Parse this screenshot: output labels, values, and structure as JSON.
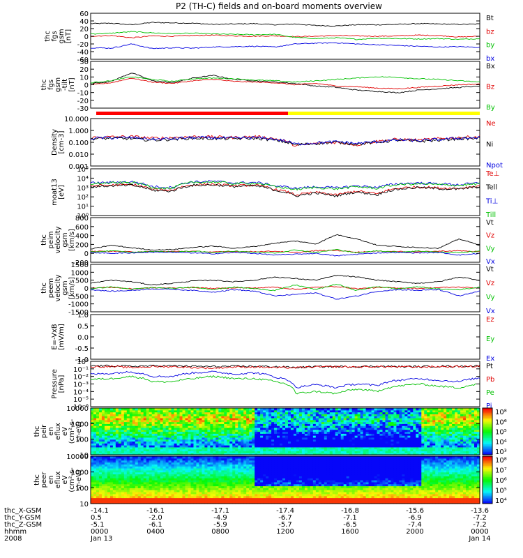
{
  "title": "P2 (TH-C) fields and on-board moments overview",
  "chart_data": [
    {
      "type": "line",
      "panel": 1,
      "ylabel": [
        "thc",
        "fgs",
        "gsm",
        "[nT]"
      ],
      "yticks": [
        "60",
        "40",
        "20",
        "0",
        "-20",
        "-40",
        "-60"
      ],
      "ylim": [
        -60,
        60
      ],
      "grid": false,
      "legend_position": "right",
      "series": [
        {
          "name": "Bt",
          "color": "#000000",
          "values": [
            33,
            34,
            30,
            36,
            35,
            34,
            31,
            32,
            33,
            30,
            32,
            28,
            27,
            30,
            30,
            31,
            33,
            32,
            31,
            32
          ]
        },
        {
          "name": "bz",
          "color": "#e00000",
          "values": [
            0,
            2,
            -4,
            1,
            0,
            2,
            3,
            1,
            0,
            1,
            -1,
            0,
            2,
            1,
            0,
            1,
            3,
            2,
            -2,
            0
          ]
        },
        {
          "name": "by",
          "color": "#00c000",
          "values": [
            6,
            8,
            12,
            9,
            7,
            8,
            6,
            5,
            4,
            5,
            -3,
            -6,
            -4,
            -8,
            -5,
            -6,
            -7,
            -6,
            -8,
            -6
          ]
        },
        {
          "name": "bx",
          "color": "#0000e0",
          "values": [
            -30,
            -31,
            -20,
            -32,
            -30,
            -31,
            -28,
            -27,
            -26,
            -28,
            -20,
            -18,
            -17,
            -20,
            -22,
            -24,
            -26,
            -28,
            -27,
            -29
          ]
        }
      ]
    },
    {
      "type": "line",
      "panel": 2,
      "ylabel": [
        "thc",
        "fgs",
        "gsm",
        "-tilt",
        "[nT]"
      ],
      "yticks": [
        "30",
        "20",
        "10",
        "0",
        "-10",
        "-20",
        "-30"
      ],
      "ylim": [
        -35,
        35
      ],
      "grid": false,
      "legend_position": "right",
      "series": [
        {
          "name": "Bx",
          "color": "#000000",
          "values": [
            2,
            5,
            18,
            6,
            3,
            10,
            14,
            8,
            6,
            4,
            2,
            -2,
            -4,
            -8,
            -10,
            -12,
            -8,
            -6,
            -4,
            -2
          ]
        },
        {
          "name": "Bz",
          "color": "#e00000",
          "values": [
            0,
            3,
            10,
            4,
            2,
            6,
            8,
            5,
            4,
            3,
            0,
            2,
            -2,
            -3,
            -5,
            -6,
            -4,
            -2,
            0,
            1
          ]
        },
        {
          "name": "By",
          "color": "#00c000",
          "values": [
            3,
            6,
            12,
            8,
            5,
            9,
            10,
            9,
            7,
            6,
            4,
            6,
            8,
            10,
            12,
            11,
            9,
            8,
            6,
            4
          ]
        }
      ]
    },
    {
      "type": "line",
      "panel": 3,
      "scale": "log",
      "ylabel": [
        "Density",
        "[cm-3]"
      ],
      "yticks": [
        "10.000",
        "1.000",
        "0.100",
        "0.010",
        "0.001"
      ],
      "ylim": [
        0.001,
        10
      ],
      "grid": false,
      "legend_position": "right",
      "series": [
        {
          "name": "Ne",
          "color": "#e00000",
          "values": [
            0.25,
            0.28,
            0.3,
            0.22,
            0.25,
            0.3,
            0.28,
            0.25,
            0.3,
            0.2,
            0.05,
            0.08,
            0.1,
            0.06,
            0.12,
            0.18,
            0.15,
            0.2,
            0.25,
            0.3
          ]
        },
        {
          "name": "Ni",
          "color": "#000000",
          "values": [
            0.2,
            0.22,
            0.2,
            0.15,
            0.18,
            0.22,
            0.2,
            0.2,
            0.22,
            0.15,
            0.06,
            0.08,
            0.1,
            0.07,
            0.1,
            0.15,
            0.12,
            0.15,
            0.2,
            0.22
          ]
        },
        {
          "name": "Npot",
          "color": "#0000e0",
          "values": [
            0.22,
            0.24,
            0.25,
            0.18,
            0.2,
            0.25,
            0.24,
            0.22,
            0.25,
            0.18,
            0.07,
            0.09,
            0.11,
            0.08,
            0.11,
            0.16,
            0.14,
            0.17,
            0.22,
            0.24
          ]
        }
      ]
    },
    {
      "type": "line",
      "panel": 4,
      "scale": "log",
      "ylabel": [
        "moat13",
        "[eV]"
      ],
      "yticks": [
        "10⁵",
        "10⁴",
        "10³",
        "10²",
        "10¹",
        "10⁰"
      ],
      "ylim": [
        1,
        100000
      ],
      "grid": false,
      "legend_position": "right",
      "series": [
        {
          "name": "Te⊥",
          "color": "#e00000",
          "values": [
            1500,
            1800,
            2000,
            600,
            500,
            2000,
            2200,
            1500,
            1800,
            600,
            150,
            300,
            150,
            400,
            200,
            800,
            1200,
            900,
            800,
            1500
          ]
        },
        {
          "name": "Tell",
          "color": "#000000",
          "values": [
            1200,
            1500,
            1700,
            500,
            400,
            1700,
            1900,
            1300,
            1500,
            500,
            120,
            250,
            120,
            320,
            160,
            650,
            1000,
            750,
            650,
            1200
          ]
        },
        {
          "name": "Ti⊥",
          "color": "#0000e0",
          "values": [
            3000,
            3500,
            4000,
            1200,
            1000,
            4000,
            4500,
            3000,
            3500,
            1500,
            800,
            1200,
            900,
            1500,
            1000,
            2500,
            3000,
            2500,
            2000,
            3000
          ]
        },
        {
          "name": "Till",
          "color": "#00c000",
          "values": [
            2500,
            3000,
            3500,
            1000,
            800,
            3500,
            4000,
            2500,
            3000,
            1200,
            600,
            1000,
            700,
            1200,
            800,
            2000,
            2500,
            2000,
            1700,
            2500
          ]
        }
      ]
    },
    {
      "type": "line",
      "panel": 5,
      "ylabel": [
        "thc",
        "peim",
        "velocity",
        "gsm",
        "[km/s]"
      ],
      "yticks": [
        "800",
        "600",
        "400",
        "200",
        "0",
        "-200"
      ],
      "ylim": [
        -250,
        800
      ],
      "grid": false,
      "legend_position": "right",
      "series": [
        {
          "name": "Vt",
          "color": "#000000",
          "values": [
            60,
            150,
            90,
            40,
            50,
            100,
            130,
            80,
            120,
            200,
            250,
            180,
            400,
            300,
            150,
            120,
            100,
            80,
            300,
            150
          ]
        },
        {
          "name": "Vz",
          "color": "#e00000",
          "values": [
            5,
            10,
            -5,
            0,
            5,
            10,
            -10,
            5,
            0,
            10,
            -20,
            20,
            30,
            -10,
            10,
            5,
            -5,
            10,
            20,
            0
          ]
        },
        {
          "name": "Vy",
          "color": "#00c000",
          "values": [
            -10,
            20,
            -15,
            5,
            -5,
            10,
            -20,
            15,
            -10,
            -30,
            40,
            -20,
            50,
            -30,
            20,
            -10,
            15,
            -10,
            -20,
            10
          ]
        },
        {
          "name": "Vx",
          "color": "#0000e0",
          "values": [
            -20,
            -40,
            -30,
            -10,
            -15,
            -30,
            -50,
            -20,
            -40,
            -80,
            -60,
            -40,
            -100,
            -60,
            -30,
            -20,
            -30,
            -20,
            -80,
            -40
          ]
        }
      ]
    },
    {
      "type": "line",
      "panel": 6,
      "ylabel": [
        "thc",
        "peem",
        "velocity",
        "gsm",
        "[km/s]"
      ],
      "yticks": [
        "1500",
        "1000",
        "500",
        "0",
        "-500",
        "-1000",
        "-1500"
      ],
      "ylim": [
        -1500,
        1500
      ],
      "grid": false,
      "legend_position": "right",
      "series": [
        {
          "name": "Vt",
          "color": "#000000",
          "values": [
            300,
            500,
            400,
            200,
            300,
            450,
            500,
            400,
            500,
            700,
            600,
            500,
            800,
            700,
            500,
            400,
            300,
            400,
            700,
            500
          ]
        },
        {
          "name": "Vz",
          "color": "#e00000",
          "values": [
            0,
            50,
            -50,
            20,
            0,
            40,
            -30,
            20,
            0,
            60,
            -80,
            50,
            100,
            -40,
            30,
            10,
            -20,
            30,
            60,
            0
          ]
        },
        {
          "name": "Vy",
          "color": "#00c000",
          "values": [
            -50,
            80,
            -70,
            30,
            -30,
            60,
            -90,
            60,
            -40,
            -150,
            200,
            -100,
            250,
            -150,
            100,
            -50,
            80,
            -60,
            -100,
            50
          ]
        },
        {
          "name": "Vx",
          "color": "#0000e0",
          "values": [
            -100,
            -200,
            -150,
            -50,
            -80,
            -150,
            -250,
            -100,
            -200,
            -500,
            -400,
            -300,
            -700,
            -500,
            -200,
            -100,
            -150,
            -100,
            -500,
            -200
          ]
        }
      ]
    },
    {
      "type": "line",
      "panel": 7,
      "ylabel": [
        "E=-VxB",
        "[mV/m]"
      ],
      "yticks": [
        "1.0",
        "0.5",
        "0.0",
        "-0.5",
        "-1.0"
      ],
      "ylim": [
        -1,
        1
      ],
      "grid": false,
      "legend_position": "right",
      "series": [
        {
          "name": "Ez",
          "color": "#e00000",
          "values": []
        },
        {
          "name": "Ey",
          "color": "#00c000",
          "values": []
        },
        {
          "name": "Ex",
          "color": "#0000e0",
          "values": []
        }
      ]
    },
    {
      "type": "line",
      "panel": 8,
      "scale": "log",
      "ylabel": [
        "Pressure",
        "[nPa]"
      ],
      "yticks": [
        "10⁰",
        "10⁻¹",
        "10⁻²",
        "10⁻³",
        "10⁻⁴",
        "10⁻⁵",
        "10⁻⁶"
      ],
      "ylim": [
        1e-06,
        1
      ],
      "grid": false,
      "legend_position": "right",
      "series": [
        {
          "name": "Pt",
          "color": "#000000",
          "values": [
            0.25,
            0.25,
            0.22,
            0.25,
            0.25,
            0.22,
            0.2,
            0.22,
            0.22,
            0.2,
            0.15,
            0.2,
            0.2,
            0.2,
            0.22,
            0.2,
            0.2,
            0.22,
            0.22,
            0.25
          ]
        },
        {
          "name": "Pb",
          "color": "#e00000",
          "values": [
            0.2,
            0.2,
            0.15,
            0.2,
            0.2,
            0.15,
            0.12,
            0.18,
            0.18,
            0.15,
            0.14,
            0.18,
            0.19,
            0.18,
            0.2,
            0.18,
            0.18,
            0.2,
            0.2,
            0.22
          ]
        },
        {
          "name": "Pe",
          "color": "#00c000",
          "values": [
            0.004,
            0.005,
            0.01,
            0.002,
            0.002,
            0.005,
            0.01,
            0.005,
            0.005,
            0.002,
            5e-05,
            0.0001,
            5e-05,
            0.0002,
            0.0001,
            0.0005,
            0.001,
            0.0005,
            0.0003,
            0.001
          ]
        },
        {
          "name": "Pi",
          "color": "#0000e0",
          "values": [
            0.02,
            0.025,
            0.04,
            0.01,
            0.01,
            0.03,
            0.04,
            0.02,
            0.03,
            0.008,
            0.0003,
            0.0008,
            0.0003,
            0.001,
            0.0006,
            0.003,
            0.005,
            0.003,
            0.002,
            0.006
          ]
        }
      ]
    },
    {
      "type": "heatmap",
      "panel": 9,
      "scale": "log",
      "ylabel": [
        "thc",
        "peir",
        "en",
        "eflux",
        "eV",
        "(cm²-s-",
        "sr-eV)"
      ],
      "yticks": [
        "10000",
        "1000",
        "100",
        "10"
      ],
      "ylim": [
        5,
        25000
      ],
      "colorbar_ticks": [
        "10⁸",
        "10⁶",
        "10⁵",
        "10⁴",
        "10³"
      ],
      "grid": false
    },
    {
      "type": "heatmap",
      "panel": 10,
      "scale": "log",
      "ylabel": [
        "thc",
        "peer",
        "en",
        "eflux",
        "eV",
        "(cm²-s-",
        "sr-eV)"
      ],
      "yticks": [
        "10000",
        "1000",
        "100",
        "10"
      ],
      "ylim": [
        7,
        25000
      ],
      "colorbar_ticks": [
        "10⁸",
        "10⁷",
        "10⁶",
        "10⁵",
        "10⁴"
      ],
      "grid": false
    }
  ],
  "xaxis": {
    "rows": [
      {
        "label": "thc_X-GSM",
        "values": [
          "-14.1",
          "-16.1",
          "-17.1",
          "-17.4",
          "-16.8",
          "-15.6",
          "-13.6"
        ]
      },
      {
        "label": "thc_Y-GSM",
        "values": [
          "0.5",
          "-2.0",
          "-4.9",
          "-6.7",
          "-7.1",
          "-6.9",
          "-7.2"
        ]
      },
      {
        "label": "thc_Z-GSM",
        "values": [
          "-5.1",
          "-6.1",
          "-5.9",
          "-5.7",
          "-6.5",
          "-7.4",
          "-7.2"
        ]
      },
      {
        "label": "hhmm",
        "values": [
          "0000",
          "0400",
          "0800",
          "1200",
          "1600",
          "2000",
          "0000"
        ]
      },
      {
        "label": "2008",
        "values": [
          "Jan 13",
          "",
          "",
          "",
          "",
          "",
          "Jan 14"
        ]
      }
    ]
  },
  "mode_bar": {
    "colors": [
      "#ff0000",
      "#ffff00"
    ],
    "split_fraction": 0.5
  }
}
